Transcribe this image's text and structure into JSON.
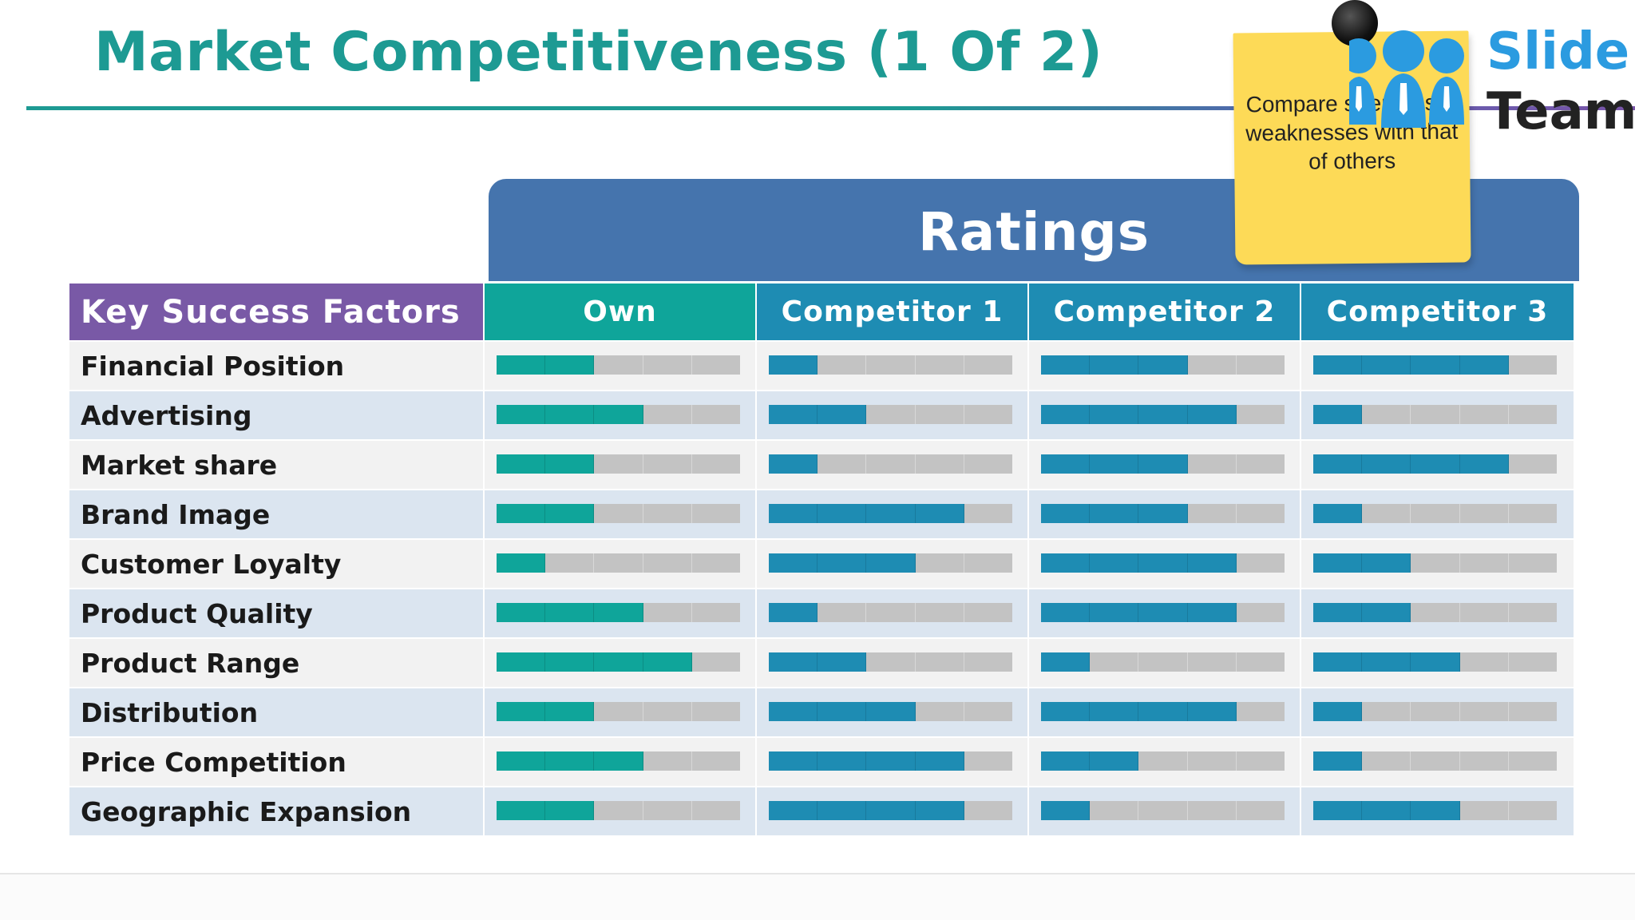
{
  "slide": {
    "title": "Market Competitiveness (1 Of 2)",
    "ratings_label": "Ratings",
    "note_text": "Compare strengths & weaknesses with that of others",
    "logo": {
      "line1": "Slide",
      "line2": "Team"
    }
  },
  "colors": {
    "title": "#1d9a93",
    "banner": "#4574ad",
    "factors_header": "#7959a6",
    "own": "#0fa59a",
    "competitor": "#1e8cb3",
    "empty_segment": "#c3c3c3",
    "note": "#fdda57"
  },
  "table": {
    "factor_header": "Key Success Factors",
    "columns": [
      "Own",
      "Competitor 1",
      "Competitor 2",
      "Competitor 3"
    ],
    "max_rating": 5,
    "rows": [
      {
        "factor": "Financial Position",
        "ratings": [
          2,
          1,
          3,
          4
        ]
      },
      {
        "factor": "Advertising",
        "ratings": [
          3,
          2,
          4,
          1
        ]
      },
      {
        "factor": "Market share",
        "ratings": [
          2,
          1,
          3,
          4
        ]
      },
      {
        "factor": "Brand Image",
        "ratings": [
          2,
          4,
          3,
          1
        ]
      },
      {
        "factor": "Customer Loyalty",
        "ratings": [
          1,
          3,
          4,
          2
        ]
      },
      {
        "factor": "Product Quality",
        "ratings": [
          3,
          1,
          4,
          2
        ]
      },
      {
        "factor": "Product Range",
        "ratings": [
          4,
          2,
          1,
          3
        ]
      },
      {
        "factor": "Distribution",
        "ratings": [
          2,
          3,
          4,
          1
        ]
      },
      {
        "factor": "Price Competition",
        "ratings": [
          3,
          4,
          2,
          1
        ]
      },
      {
        "factor": "Geographic Expansion",
        "ratings": [
          2,
          4,
          1,
          3
        ]
      }
    ]
  }
}
